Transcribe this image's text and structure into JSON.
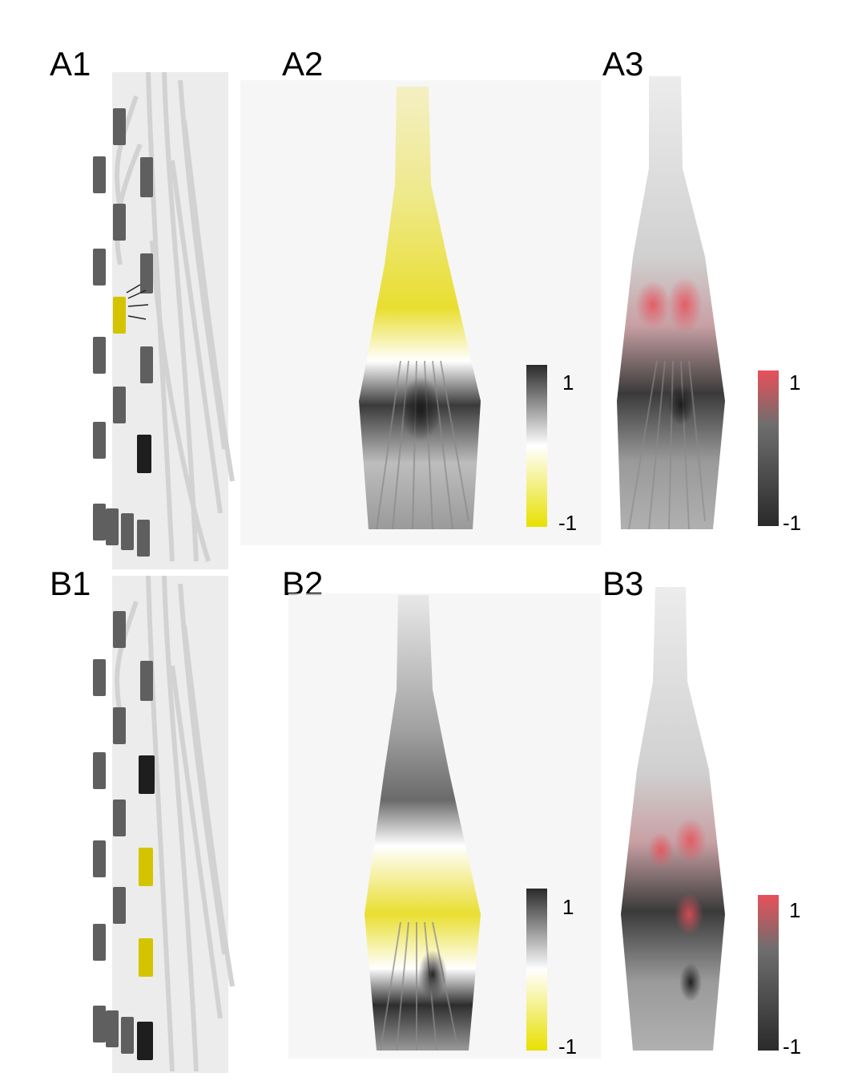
{
  "panels": [
    {
      "id": "A1",
      "label": "A1"
    },
    {
      "id": "A2",
      "label": "A2"
    },
    {
      "id": "A3",
      "label": "A3"
    },
    {
      "id": "B1",
      "label": "B1"
    },
    {
      "id": "B2",
      "label": "B2"
    },
    {
      "id": "B3",
      "label": "B3"
    }
  ],
  "colorbars": [
    {
      "panel": "A2",
      "max_label": "1",
      "min_label": "-1",
      "colors": [
        "#2a2a2a",
        "#ffffff",
        "#e8e000"
      ]
    },
    {
      "panel": "A3",
      "max_label": "1",
      "min_label": "-1",
      "colors": [
        "#e8505a",
        "#6e6e6e",
        "#2a2a2a"
      ]
    },
    {
      "panel": "B2",
      "max_label": "1",
      "min_label": "-1",
      "colors": [
        "#2a2a2a",
        "#ffffff",
        "#e8e000"
      ]
    },
    {
      "panel": "B3",
      "max_label": "1",
      "min_label": "-1",
      "colors": [
        "#e8505a",
        "#6e6e6e",
        "#2a2a2a"
      ]
    }
  ],
  "colors": {
    "active_anode": "#d4c400",
    "active_cathode": "#1e1e1e",
    "inactive_contact": "#5f5f5f",
    "tissue": "#d8d8d8",
    "highlight_positive": "#e8505a",
    "highlight_negative": "#e8e000"
  }
}
